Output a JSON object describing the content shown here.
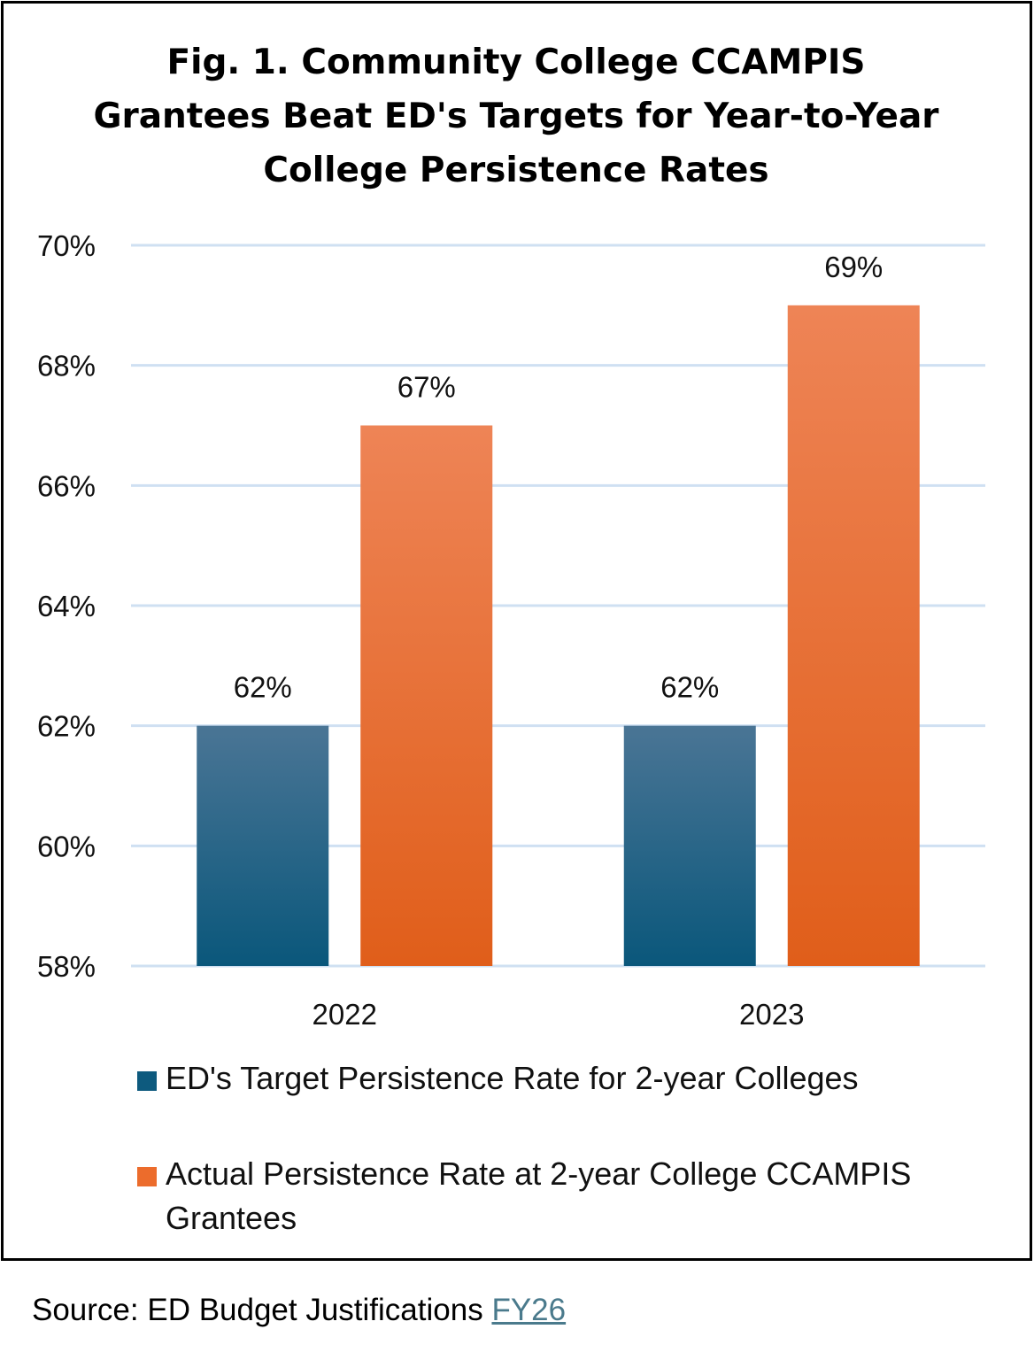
{
  "chart_data": {
    "type": "bar",
    "title": "Fig. 1. Community College CCAMPIS Grantees Beat ED's Targets for Year-to-Year College Persistence Rates",
    "categories": [
      "2022",
      "2023"
    ],
    "series": [
      {
        "name": "ED's Target Persistence Rate for 2-year Colleges",
        "values": [
          62,
          62
        ],
        "labels": [
          "62%",
          "62%"
        ],
        "color_top": "#4a7595",
        "color_bottom": "#0a577b"
      },
      {
        "name": "Actual Persistence Rate at 2-year College CCAMPIS Grantees",
        "values": [
          67,
          69
        ],
        "labels": [
          "67%",
          "69%"
        ],
        "color_top": "#ee8456",
        "color_bottom": "#e05e1a"
      }
    ],
    "ylim": [
      58,
      70
    ],
    "yticks": [
      58,
      60,
      62,
      64,
      66,
      68,
      70
    ],
    "ytick_labels": [
      "58%",
      "60%",
      "62%",
      "64%",
      "66%",
      "68%",
      "70%"
    ],
    "xlabel": "",
    "ylabel": "",
    "grid": true,
    "grid_color": "#cfe0f2",
    "legend_position": "bottom"
  },
  "source": {
    "prefix": "Source: ED Budget Justifications",
    "link": "FY26"
  }
}
